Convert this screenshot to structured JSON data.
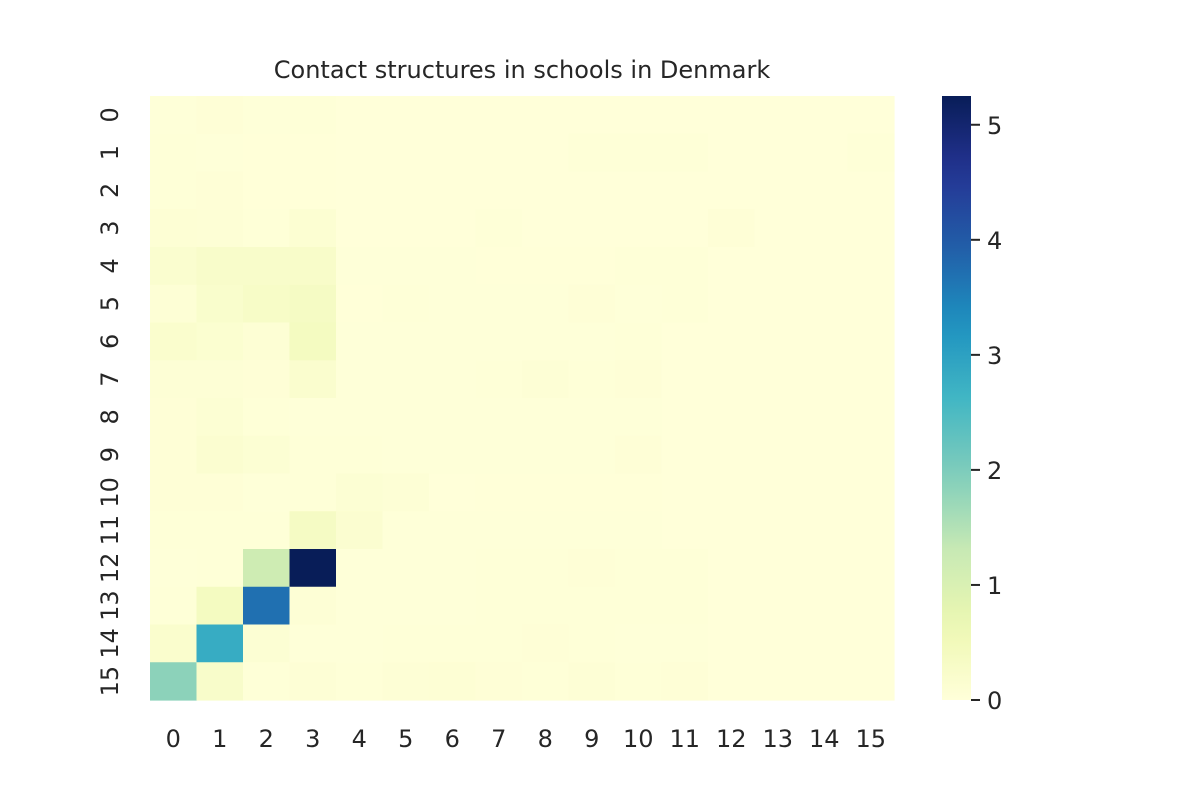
{
  "chart_data": {
    "type": "heatmap",
    "title": "Contact structures in schools in Denmark",
    "xlabel": "",
    "ylabel": "",
    "x_categories": [
      "0",
      "1",
      "2",
      "3",
      "4",
      "5",
      "6",
      "7",
      "8",
      "9",
      "10",
      "11",
      "12",
      "13",
      "14",
      "15"
    ],
    "y_categories": [
      "0",
      "1",
      "2",
      "3",
      "4",
      "5",
      "6",
      "7",
      "8",
      "9",
      "10",
      "11",
      "12",
      "13",
      "14",
      "15"
    ],
    "values": [
      [
        0.02,
        0.05,
        0.02,
        0.04,
        0.0,
        0.0,
        0.0,
        0.0,
        0.0,
        0.0,
        0.0,
        0.0,
        0.0,
        0.0,
        0.0,
        0.0
      ],
      [
        0.03,
        0.02,
        0.01,
        0.01,
        0.0,
        0.0,
        0.0,
        0.0,
        0.0,
        0.03,
        0.04,
        0.04,
        0.0,
        0.0,
        0.0,
        0.03
      ],
      [
        0.03,
        0.05,
        0.01,
        0.01,
        0.0,
        0.0,
        0.0,
        0.0,
        0.0,
        0.0,
        0.0,
        0.0,
        0.0,
        0.0,
        0.0,
        0.0
      ],
      [
        0.08,
        0.06,
        0.04,
        0.12,
        0.0,
        0.0,
        0.0,
        0.03,
        0.0,
        0.0,
        0.0,
        0.0,
        0.05,
        0.0,
        0.0,
        0.0
      ],
      [
        0.17,
        0.25,
        0.25,
        0.27,
        0.02,
        0.02,
        0.02,
        0.01,
        0.01,
        0.01,
        0.03,
        0.03,
        0.0,
        0.0,
        0.0,
        0.0
      ],
      [
        0.06,
        0.22,
        0.3,
        0.35,
        0.01,
        0.04,
        0.02,
        0.02,
        0.02,
        0.05,
        0.02,
        0.04,
        0.0,
        0.0,
        0.0,
        0.0
      ],
      [
        0.2,
        0.14,
        0.08,
        0.4,
        0.02,
        0.02,
        0.02,
        0.02,
        0.02,
        0.02,
        0.04,
        0.0,
        0.0,
        0.0,
        0.0,
        0.0
      ],
      [
        0.06,
        0.06,
        0.05,
        0.18,
        0.02,
        0.02,
        0.02,
        0.03,
        0.06,
        0.03,
        0.05,
        0.0,
        0.0,
        0.0,
        0.0,
        0.0
      ],
      [
        0.05,
        0.1,
        0.03,
        0.02,
        0.02,
        0.02,
        0.02,
        0.02,
        0.02,
        0.02,
        0.02,
        0.0,
        0.0,
        0.0,
        0.0,
        0.0
      ],
      [
        0.05,
        0.15,
        0.1,
        0.03,
        0.04,
        0.02,
        0.02,
        0.02,
        0.02,
        0.02,
        0.05,
        0.0,
        0.0,
        0.0,
        0.0,
        0.0
      ],
      [
        0.05,
        0.05,
        0.02,
        0.03,
        0.1,
        0.06,
        0.0,
        0.01,
        0.01,
        0.01,
        0.01,
        0.0,
        0.0,
        0.0,
        0.0,
        0.0
      ],
      [
        0.04,
        0.03,
        0.03,
        0.35,
        0.15,
        0.02,
        0.02,
        0.02,
        0.02,
        0.02,
        0.02,
        0.0,
        0.0,
        0.0,
        0.0,
        0.0
      ],
      [
        0.02,
        0.03,
        1.2,
        5.25,
        0.02,
        0.02,
        0.02,
        0.04,
        0.04,
        0.05,
        0.04,
        0.04,
        0.0,
        0.0,
        0.0,
        0.0
      ],
      [
        0.04,
        0.4,
        3.7,
        0.06,
        0.02,
        0.02,
        0.02,
        0.04,
        0.04,
        0.03,
        0.03,
        0.03,
        0.0,
        0.0,
        0.0,
        0.0
      ],
      [
        0.2,
        2.8,
        0.1,
        0.02,
        0.02,
        0.03,
        0.04,
        0.03,
        0.05,
        0.03,
        0.02,
        0.02,
        0.0,
        0.0,
        0.0,
        0.0
      ],
      [
        1.85,
        0.25,
        0.04,
        0.06,
        0.03,
        0.06,
        0.08,
        0.05,
        0.03,
        0.06,
        0.04,
        0.05,
        0.0,
        0.0,
        0.0,
        0.0
      ]
    ],
    "colorbar": {
      "min": 0,
      "max": 5.25,
      "ticks": [
        0,
        1,
        2,
        3,
        4,
        5
      ],
      "colormap": "YlGnBu"
    }
  }
}
